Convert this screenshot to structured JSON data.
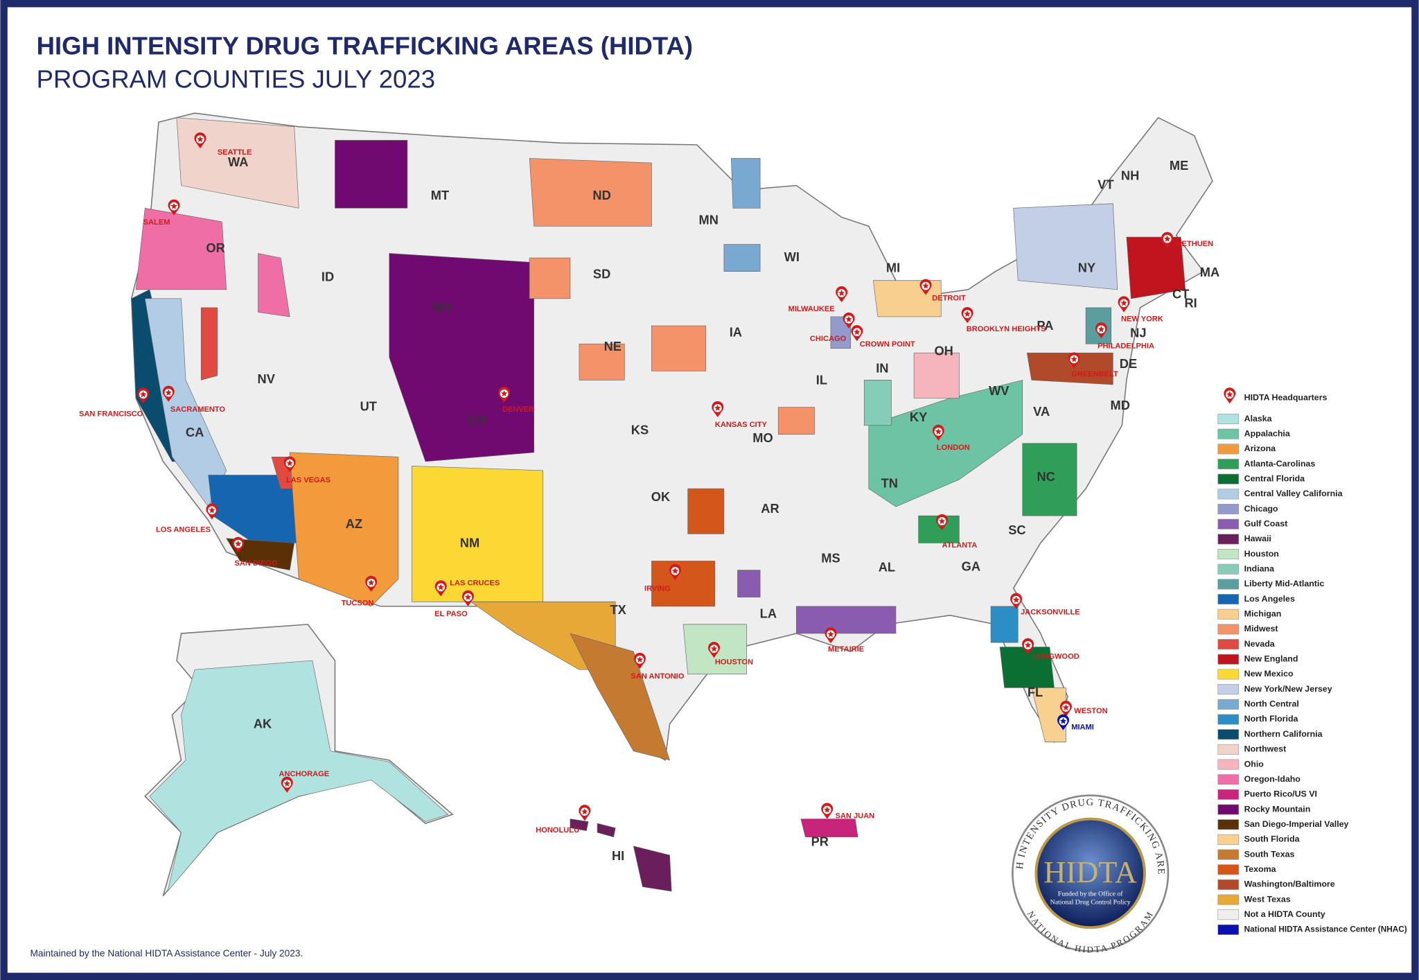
{
  "header": {
    "title": "HIGH INTENSITY DRUG TRAFFICKING AREAS (HIDTA)",
    "subtitle": "PROGRAM COUNTIES JULY 2023"
  },
  "states": [
    "WA",
    "OR",
    "ID",
    "MT",
    "WY",
    "ND",
    "SD",
    "NE",
    "MN",
    "IA",
    "WI",
    "MI",
    "IL",
    "IN",
    "OH",
    "PA",
    "NY",
    "VT",
    "NH",
    "ME",
    "MA",
    "RI",
    "CT",
    "NJ",
    "DE",
    "MD",
    "VA",
    "WV",
    "KY",
    "TN",
    "NC",
    "SC",
    "GA",
    "AL",
    "MS",
    "LA",
    "AR",
    "MO",
    "KS",
    "OK",
    "TX",
    "NM",
    "CO",
    "UT",
    "NV",
    "CA",
    "AZ",
    "AK",
    "HI",
    "FL",
    "PR"
  ],
  "headquarters": [
    "SEATTLE",
    "SALEM",
    "SAN FRANCISCO",
    "SACRAMENTO",
    "LOS ANGELES",
    "SAN DIEGO",
    "LAS VEGAS",
    "TUCSON",
    "LAS CRUCES",
    "EL PASO",
    "DENVER",
    "KANSAS CITY",
    "IRVING",
    "SAN ANTONIO",
    "HOUSTON",
    "METAIRIE",
    "CHICAGO",
    "MILWAUKEE",
    "CROWN POINT",
    "DETROIT",
    "BROOKLYN HEIGHTS",
    "LONDON",
    "ATLANTA",
    "JACKSONVILLE",
    "LONGWOOD",
    "WESTON",
    "MIAMI",
    "GREENBELT",
    "PHILADELPHIA",
    "NEW YORK",
    "METHUEN",
    "ANCHORAGE",
    "HONOLULU",
    "SAN JUAN"
  ],
  "legend": {
    "headquarters_label": "HIDTA Headquarters",
    "items": [
      {
        "name": "Alaska",
        "color": "#b0e2e0"
      },
      {
        "name": "Appalachia",
        "color": "#6cc4a4"
      },
      {
        "name": "Arizona",
        "color": "#f39a3c"
      },
      {
        "name": "Atlanta-Carolinas",
        "color": "#2e9e58"
      },
      {
        "name": "Central Florida",
        "color": "#0b6e32"
      },
      {
        "name": "Central Valley California",
        "color": "#b3cce6"
      },
      {
        "name": "Chicago",
        "color": "#929bcc"
      },
      {
        "name": "Gulf Coast",
        "color": "#8a5cb0"
      },
      {
        "name": "Hawaii",
        "color": "#6a1e5c"
      },
      {
        "name": "Houston",
        "color": "#c2e6c4"
      },
      {
        "name": "Indiana",
        "color": "#86cdb8"
      },
      {
        "name": "Liberty Mid-Atlantic",
        "color": "#5a9ea0"
      },
      {
        "name": "Los Angeles",
        "color": "#1565b0"
      },
      {
        "name": "Michigan",
        "color": "#f8cf8e"
      },
      {
        "name": "Midwest",
        "color": "#f4926a"
      },
      {
        "name": "Nevada",
        "color": "#e04a40"
      },
      {
        "name": "New England",
        "color": "#c0141e"
      },
      {
        "name": "New Mexico",
        "color": "#fcd835"
      },
      {
        "name": "New York/New Jersey",
        "color": "#c3cfe6"
      },
      {
        "name": "North Central",
        "color": "#79a8d0"
      },
      {
        "name": "North Florida",
        "color": "#2c8ec4"
      },
      {
        "name": "Northern California",
        "color": "#0a4c6e"
      },
      {
        "name": "Northwest",
        "color": "#f0d4cc"
      },
      {
        "name": "Ohio",
        "color": "#f6b4bc"
      },
      {
        "name": "Oregon-Idaho",
        "color": "#f06ea6"
      },
      {
        "name": "Puerto Rico/US VI",
        "color": "#c8247c"
      },
      {
        "name": "Rocky Mountain",
        "color": "#700a70"
      },
      {
        "name": "San Diego-Imperial Valley",
        "color": "#5a3006"
      },
      {
        "name": "South Florida",
        "color": "#f8d090"
      },
      {
        "name": "South Texas",
        "color": "#c47a30"
      },
      {
        "name": "Texoma",
        "color": "#d4561a"
      },
      {
        "name": "Washington/Baltimore",
        "color": "#b04a2a"
      },
      {
        "name": "West Texas",
        "color": "#e8a838"
      },
      {
        "name": "Not a HIDTA County",
        "color": "#eeeeee"
      },
      {
        "name": "National HIDTA Assistance Center (NHAC)",
        "color": "#0a10b0"
      }
    ]
  },
  "seal": {
    "ring_top": "HIGH INTENSITY DRUG TRAFFICKING AREAS",
    "ring_bottom": "NATIONAL HIDTA PROGRAM",
    "center": "HIDTA",
    "funded": "Funded by the Office of",
    "policy": "National Drug Control Policy"
  },
  "footer": "Maintained by the National HIDTA Assistance Center - July 2023."
}
